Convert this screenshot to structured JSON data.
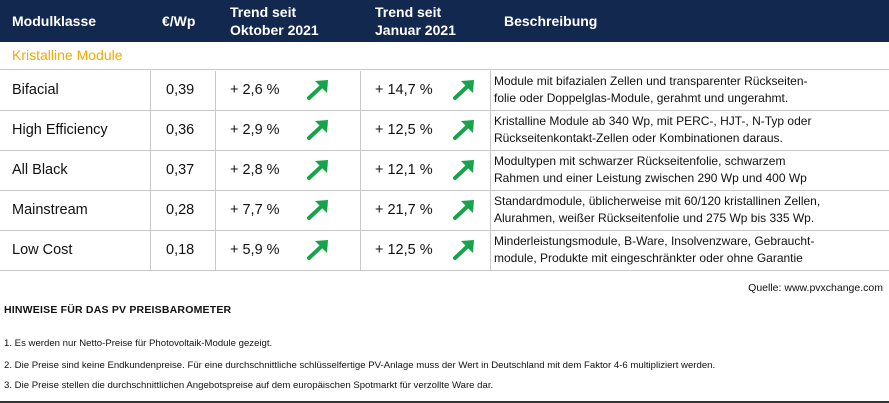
{
  "header": {
    "col_module": "Modulklasse",
    "col_price": "€/Wp",
    "col_oct_1": "Trend seit",
    "col_oct_2": "Oktober 2021",
    "col_jan_1": "Trend seit",
    "col_jan_2": "Januar 2021",
    "col_desc": "Beschreibung"
  },
  "section_label": "Kristalline Module",
  "colors": {
    "header_bg": "#13284f",
    "section": "#f2a900",
    "arrow": "#17a34a"
  },
  "rows": [
    {
      "name": "Bifacial",
      "price": "0,39",
      "oct": "+ 2,6 %",
      "jan": "+ 14,7 %",
      "desc1": "Module mit bifazialen Zellen und transparenter Rückseiten-",
      "desc2": "folie oder Doppelglas-Module, gerahmt und ungerahmt."
    },
    {
      "name": "High Efficiency",
      "price": "0,36",
      "oct": "+ 2,9 %",
      "jan": "+ 12,5 %",
      "desc1": "Kristalline Module ab 340 Wp, mit PERC-, HJT-, N-Typ oder",
      "desc2": "Rückseitenkontakt-Zellen oder Kombinationen daraus."
    },
    {
      "name": "All Black",
      "price": "0,37",
      "oct": "+ 2,8 %",
      "jan": "+ 12,1 %",
      "desc1": "Modultypen mit schwarzer Rückseitenfolie, schwarzem",
      "desc2": "Rahmen und einer Leistung  zwischen 290 Wp und 400 Wp"
    },
    {
      "name": "Mainstream",
      "price": "0,28",
      "oct": "+ 7,7 %",
      "jan": "+ 21,7 %",
      "desc1": "Standardmodule, üblicherweise mit 60/120 kristallinen Zellen,",
      "desc2": "Alurahmen, weißer Rückseitenfolie und 275 Wp bis 335 Wp."
    },
    {
      "name": "Low Cost",
      "price": "0,18",
      "oct": "+ 5,9 %",
      "jan": "+ 12,5 %",
      "desc1": "Minderleistungsmodule, B-Ware, Insolvenzware, Gebraucht-",
      "desc2": "module, Produkte mit eingeschränkter oder ohne Garantie"
    }
  ],
  "source": "Quelle: www.pvxchange.com",
  "hints": {
    "title": "HINWEISE FÜR DAS PV PREISBAROMETER",
    "items": [
      "1.  Es werden nur Netto-Preise für Photovoltaik-Module gezeigt.",
      "2. Die Preise sind keine Endkundenpreise. Für eine durchschnittliche schlüsselfertige PV-Anlage muss der Wert in Deutschland mit dem Faktor 4-6 multipliziert werden.",
      "3. Die Preise stellen die durchschnittlichen Angebotspreise auf dem europäischen Spotmarkt für verzollte Ware dar."
    ]
  }
}
